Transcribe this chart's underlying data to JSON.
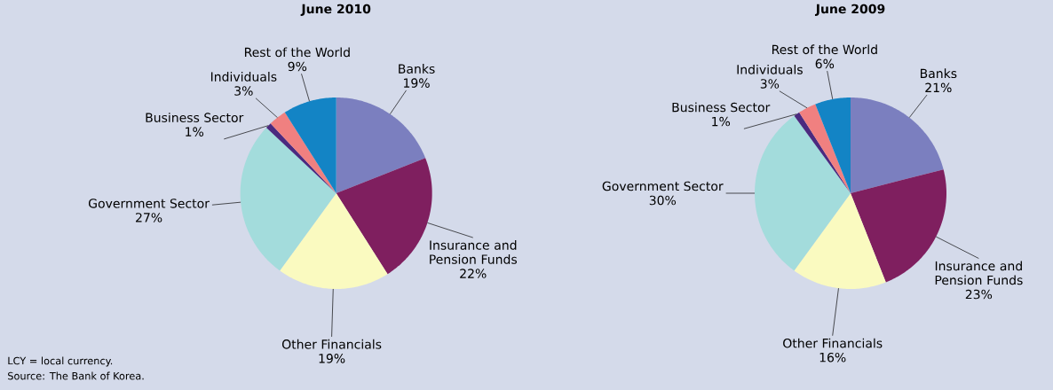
{
  "chart_data": [
    {
      "type": "pie",
      "title": "June 2010",
      "categories": [
        "Banks",
        "Insurance and Pension Funds",
        "Other Financials",
        "Government Sector",
        "Business Sector",
        "Individuals",
        "Rest of the World"
      ],
      "values": [
        19,
        22,
        19,
        27,
        1,
        3,
        9
      ],
      "value_labels": [
        "19%",
        "22%",
        "19%",
        "27%",
        "1%",
        "3%",
        "9%"
      ],
      "colors": [
        "#7b7fbf",
        "#7f1f5f",
        "#fafac0",
        "#a3dcdc",
        "#4b2a7f",
        "#f08080",
        "#1384c5"
      ],
      "annotations": [
        "LCY = local currency.",
        "Source: The Bank of Korea."
      ]
    },
    {
      "type": "pie",
      "title": "June 2009",
      "categories": [
        "Banks",
        "Insurance and Pension Funds",
        "Other Financials",
        "Government Sector",
        "Business Sector",
        "Individuals",
        "Rest of the World"
      ],
      "values": [
        21,
        23,
        16,
        30,
        1,
        3,
        6
      ],
      "value_labels": [
        "21%",
        "23%",
        "16%",
        "30%",
        "1%",
        "3%",
        "6%"
      ],
      "colors": [
        "#7b7fbf",
        "#7f1f5f",
        "#fafac0",
        "#a3dcdc",
        "#4b2a7f",
        "#f08080",
        "#1384c5"
      ]
    }
  ]
}
